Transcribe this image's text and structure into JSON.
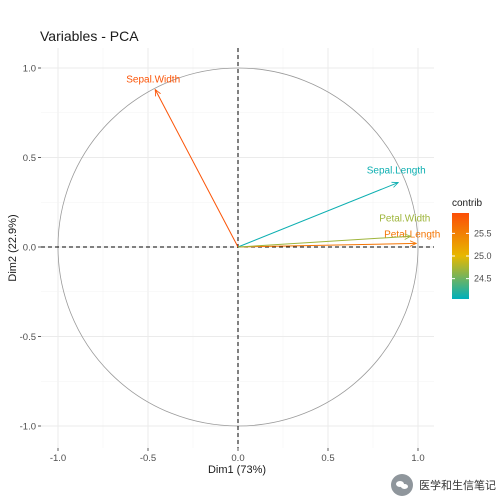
{
  "chart_data": {
    "type": "scatter",
    "subtype": "pca-variable-correlation-circle",
    "title": "Variables - PCA",
    "xlabel": "Dim1 (73%)",
    "ylabel": "Dim2 (22.9%)",
    "xlim": [
      -1.1,
      1.1
    ],
    "ylim": [
      -1.05,
      1.05
    ],
    "x_ticks": [
      -1.0,
      -0.5,
      0.0,
      0.5,
      1.0
    ],
    "x_tick_labels": [
      "-1.0",
      "-0.5",
      "0.0",
      "0.5",
      "1.0"
    ],
    "y_ticks": [
      -1.0,
      -0.5,
      0.0,
      0.5,
      1.0
    ],
    "y_tick_labels": [
      "-1.0",
      "-0.5",
      "0.0",
      "0.5",
      "1.0"
    ],
    "grid": true,
    "unit_circle": true,
    "variables": [
      {
        "name": "Sepal.Length",
        "x": 0.89,
        "y": 0.36,
        "contrib": 24.1
      },
      {
        "name": "Sepal.Width",
        "x": -0.46,
        "y": 0.88,
        "contrib": 25.9
      },
      {
        "name": "Petal.Length",
        "x": 0.99,
        "y": 0.02,
        "contrib": 25.6
      },
      {
        "name": "Petal.Width",
        "x": 0.96,
        "y": 0.06,
        "contrib": 24.7
      }
    ],
    "legend": {
      "title": "contrib",
      "position": "right",
      "ticks": [
        "25.5",
        "25.0",
        "24.5"
      ],
      "tick_values": [
        25.5,
        25.0,
        24.5
      ],
      "range": [
        24.05,
        25.95
      ],
      "colors": [
        "#00AFBB",
        "#E7B800",
        "#FC4E07"
      ]
    }
  },
  "watermark": {
    "text": "医学和生信笔记"
  }
}
